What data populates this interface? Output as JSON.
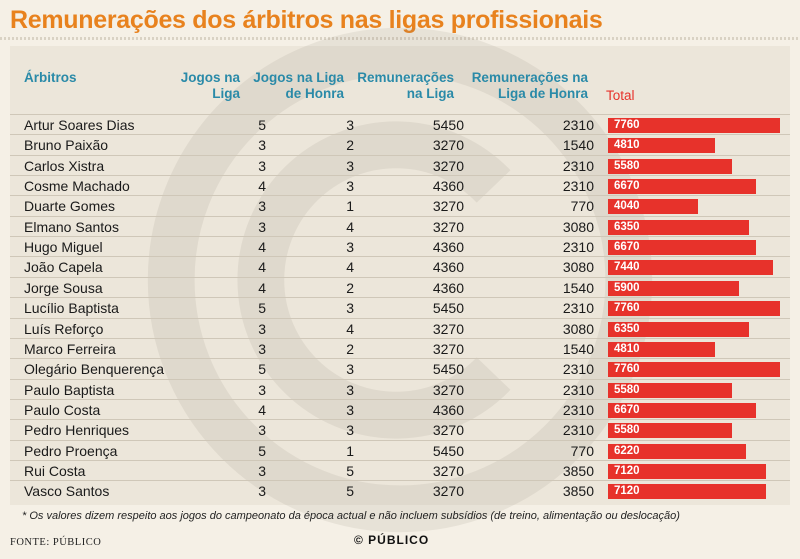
{
  "chart_data": {
    "type": "table",
    "title": "Remunerações dos árbitros nas ligas profissionais",
    "columns": [
      "Árbitros",
      "Jogos na Liga",
      "Jogos na Liga de Honra",
      "Remunerações na Liga",
      "Remunerações na Liga de Honra",
      "Total"
    ],
    "header_lines": {
      "arbitros": [
        "Árbitros"
      ],
      "jogos_liga": [
        "Jogos na",
        "Liga"
      ],
      "jogos_honra": [
        "Jogos na Liga",
        "de Honra"
      ],
      "rem_liga": [
        "Remunerações",
        "na Liga"
      ],
      "rem_honra": [
        "Remunerações na",
        "Liga de Honra"
      ],
      "total": [
        "Total"
      ]
    },
    "rows": [
      {
        "name": "Artur Soares Dias",
        "jogos_liga": 5,
        "jogos_honra": 3,
        "rem_liga": 5450,
        "rem_honra": 2310,
        "total": 7760
      },
      {
        "name": "Bruno Paixão",
        "jogos_liga": 3,
        "jogos_honra": 2,
        "rem_liga": 3270,
        "rem_honra": 1540,
        "total": 4810
      },
      {
        "name": "Carlos Xistra",
        "jogos_liga": 3,
        "jogos_honra": 3,
        "rem_liga": 3270,
        "rem_honra": 2310,
        "total": 5580
      },
      {
        "name": "Cosme Machado",
        "jogos_liga": 4,
        "jogos_honra": 3,
        "rem_liga": 4360,
        "rem_honra": 2310,
        "total": 6670
      },
      {
        "name": "Duarte Gomes",
        "jogos_liga": 3,
        "jogos_honra": 1,
        "rem_liga": 3270,
        "rem_honra": 770,
        "total": 4040
      },
      {
        "name": "Elmano Santos",
        "jogos_liga": 3,
        "jogos_honra": 4,
        "rem_liga": 3270,
        "rem_honra": 3080,
        "total": 6350
      },
      {
        "name": "Hugo Miguel",
        "jogos_liga": 4,
        "jogos_honra": 3,
        "rem_liga": 4360,
        "rem_honra": 2310,
        "total": 6670
      },
      {
        "name": "João Capela",
        "jogos_liga": 4,
        "jogos_honra": 4,
        "rem_liga": 4360,
        "rem_honra": 3080,
        "total": 7440
      },
      {
        "name": "Jorge Sousa",
        "jogos_liga": 4,
        "jogos_honra": 2,
        "rem_liga": 4360,
        "rem_honra": 1540,
        "total": 5900
      },
      {
        "name": "Lucílio Baptista",
        "jogos_liga": 5,
        "jogos_honra": 3,
        "rem_liga": 5450,
        "rem_honra": 2310,
        "total": 7760
      },
      {
        "name": "Luís Reforço",
        "jogos_liga": 3,
        "jogos_honra": 4,
        "rem_liga": 3270,
        "rem_honra": 3080,
        "total": 6350
      },
      {
        "name": "Marco Ferreira",
        "jogos_liga": 3,
        "jogos_honra": 2,
        "rem_liga": 3270,
        "rem_honra": 1540,
        "total": 4810
      },
      {
        "name": "Olegário Benquerença",
        "jogos_liga": 5,
        "jogos_honra": 3,
        "rem_liga": 5450,
        "rem_honra": 2310,
        "total": 7760
      },
      {
        "name": "Paulo Baptista",
        "jogos_liga": 3,
        "jogos_honra": 3,
        "rem_liga": 3270,
        "rem_honra": 2310,
        "total": 5580
      },
      {
        "name": "Paulo Costa",
        "jogos_liga": 4,
        "jogos_honra": 3,
        "rem_liga": 4360,
        "rem_honra": 2310,
        "total": 6670
      },
      {
        "name": "Pedro Henriques",
        "jogos_liga": 3,
        "jogos_honra": 3,
        "rem_liga": 3270,
        "rem_honra": 2310,
        "total": 5580
      },
      {
        "name": "Pedro Proença",
        "jogos_liga": 5,
        "jogos_honra": 1,
        "rem_liga": 5450,
        "rem_honra": 770,
        "total": 6220
      },
      {
        "name": "Rui Costa",
        "jogos_liga": 3,
        "jogos_honra": 5,
        "rem_liga": 3270,
        "rem_honra": 3850,
        "total": 7120
      },
      {
        "name": "Vasco Santos",
        "jogos_liga": 3,
        "jogos_honra": 5,
        "rem_liga": 3270,
        "rem_honra": 3850,
        "total": 7120
      }
    ],
    "bar_max": 7760
  },
  "colors": {
    "title": "#e8821e",
    "header": "#2a8aa8",
    "total_header": "#e7322b",
    "bar": "#e7322b"
  },
  "footnote": "* Os valores dizem respeito aos jogos do campeonato da época actual e não incluem subsídios (de treino, alimentação ou deslocação)",
  "source": "FONTE: PÚBLICO",
  "credit": "© PÚBLICO"
}
